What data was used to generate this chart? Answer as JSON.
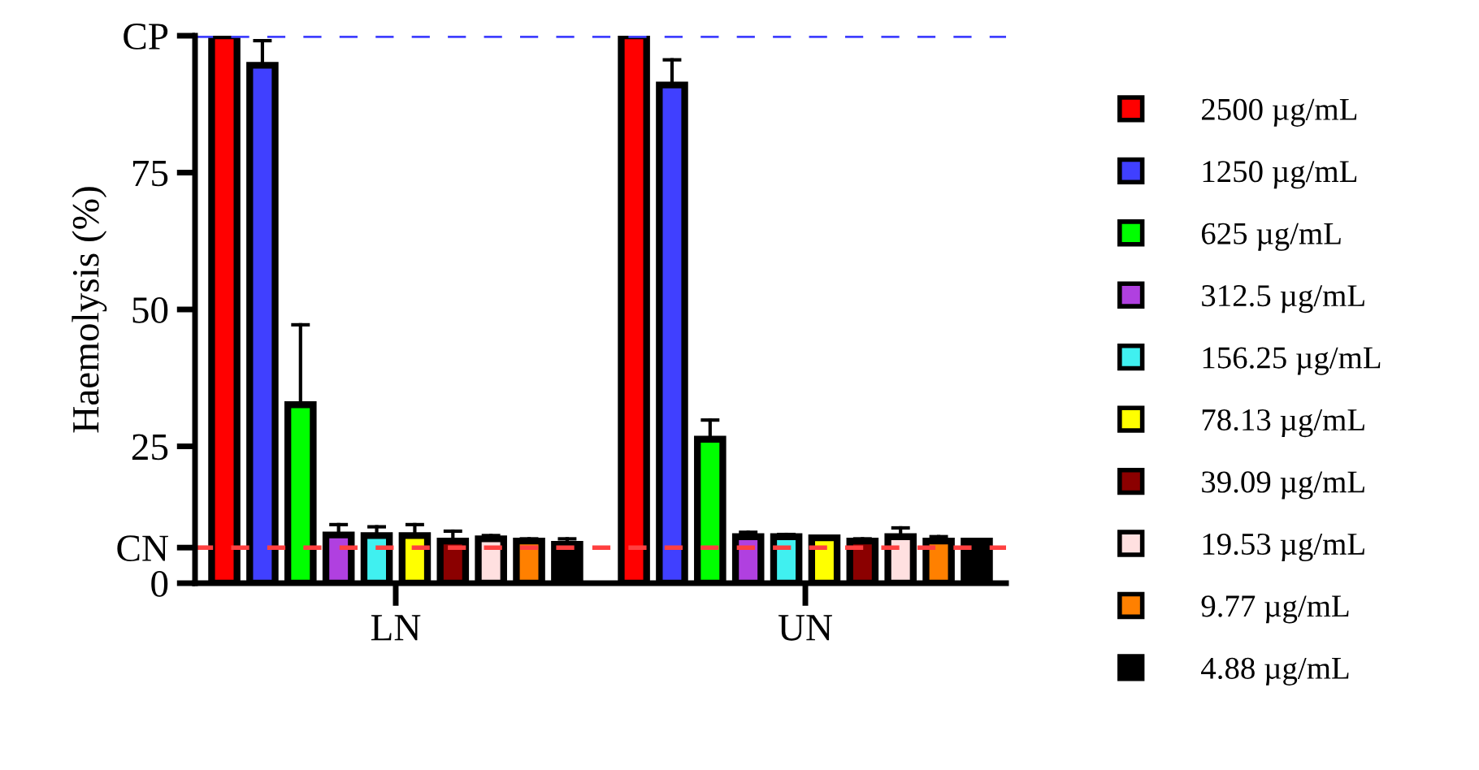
{
  "chart_data": {
    "type": "bar",
    "ylabel": "Haemolysis (%)",
    "categories": [
      "LN",
      "UN"
    ],
    "series": [
      {
        "name": "2500 µg/mL",
        "color": "#ff0000",
        "values": [
          100,
          100
        ],
        "errors": [
          null,
          null
        ]
      },
      {
        "name": "1250 µg/mL",
        "color": "#4040ff",
        "values": [
          94.6,
          91.0
        ],
        "errors": [
          [
            94.6,
            99.1
          ],
          [
            91.0,
            95.6
          ]
        ]
      },
      {
        "name": "625 µg/mL",
        "color": "#00ff00",
        "values": [
          32.6,
          26.3
        ],
        "errors": [
          [
            32.6,
            47.2
          ],
          [
            26.3,
            29.8
          ]
        ]
      },
      {
        "name": "312.5 µg/mL",
        "color": "#b040e0",
        "values": [
          8.8,
          8.5
        ],
        "errors": [
          [
            8.8,
            10.7
          ],
          [
            8.5,
            9.3
          ]
        ]
      },
      {
        "name": "156.25 µg/mL",
        "color": "#40f0f0",
        "values": [
          8.7,
          8.5
        ],
        "errors": [
          [
            8.7,
            10.3
          ],
          [
            8.5,
            8.9
          ]
        ]
      },
      {
        "name": "78.13 µg/mL",
        "color": "#ffff00",
        "values": [
          8.7,
          8.3
        ],
        "errors": [
          [
            8.7,
            10.7
          ],
          null
        ]
      },
      {
        "name": "39.09 µg/mL",
        "color": "#8b0000",
        "values": [
          7.7,
          7.7
        ],
        "errors": [
          [
            7.7,
            9.5
          ],
          [
            7.7,
            8.1
          ]
        ]
      },
      {
        "name": "19.53 µg/mL",
        "color": "#ffe0e0",
        "values": [
          8.1,
          8.5
        ],
        "errors": [
          [
            8.1,
            8.7
          ],
          [
            8.5,
            10.1
          ]
        ]
      },
      {
        "name": "9.77 µg/mL",
        "color": "#ff8000",
        "values": [
          7.7,
          7.7
        ],
        "errors": [
          [
            7.7,
            8.1
          ],
          [
            7.7,
            8.5
          ]
        ]
      },
      {
        "name": "4.88 µg/mL",
        "color": "#000000",
        "values": [
          7.1,
          7.7
        ],
        "errors": [
          [
            7.1,
            8.1
          ],
          null
        ]
      }
    ],
    "ylim": [
      0,
      100
    ],
    "yticks": [
      0,
      {
        "value": 6.5,
        "label": "CN"
      },
      25,
      50,
      75,
      {
        "value": 100,
        "label": "CP"
      }
    ],
    "ref_lines": [
      {
        "axis": "y",
        "value": 100,
        "color": "#4040ff",
        "line_style": "dashed"
      },
      {
        "axis": "y",
        "value": 6.5,
        "color": "#ff4040",
        "line_style": "dashed"
      }
    ],
    "legend": "right",
    "grid": false
  }
}
